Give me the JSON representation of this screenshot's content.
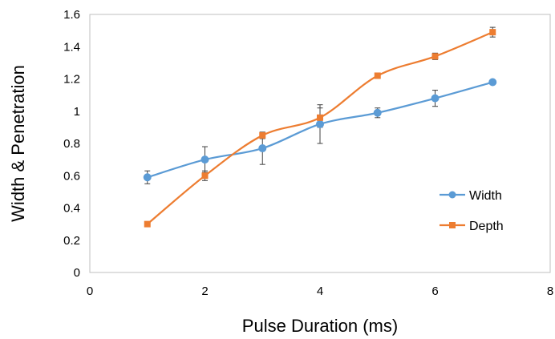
{
  "chart_data": {
    "type": "line",
    "title": "",
    "xlabel": "Pulse Duration (ms)",
    "ylabel": "Width & Penetration",
    "xlim": [
      0,
      8
    ],
    "ylim": [
      0,
      1.6
    ],
    "xticks": [
      0,
      2,
      4,
      6,
      8
    ],
    "yticks": [
      0,
      0.2,
      0.4,
      0.6,
      0.8,
      1,
      1.2,
      1.4,
      1.6
    ],
    "xtick_labels": [
      "0",
      "2",
      "4",
      "6",
      "8"
    ],
    "ytick_labels": [
      "0",
      "0.2",
      "0.4",
      "0.6",
      "0.8",
      "1",
      "1.2",
      "1.4",
      "1.6"
    ],
    "grid": false,
    "legend_position": "right",
    "series": [
      {
        "name": "Width",
        "color": "#5B9BD5",
        "marker": "circle",
        "x": [
          1,
          2,
          3,
          4,
          5,
          6,
          7
        ],
        "y": [
          0.59,
          0.7,
          0.77,
          0.92,
          0.99,
          1.08,
          1.18
        ],
        "error": [
          0.04,
          0.08,
          0.1,
          0.12,
          0.03,
          0.05,
          0.01
        ]
      },
      {
        "name": "Depth",
        "color": "#ED7D31",
        "marker": "square",
        "x": [
          1,
          2,
          3,
          4,
          5,
          6,
          7
        ],
        "y": [
          0.3,
          0.6,
          0.85,
          0.96,
          1.22,
          1.34,
          1.49
        ],
        "error": [
          0.01,
          0.03,
          0.02,
          0.06,
          0.01,
          0.02,
          0.03
        ]
      }
    ]
  }
}
